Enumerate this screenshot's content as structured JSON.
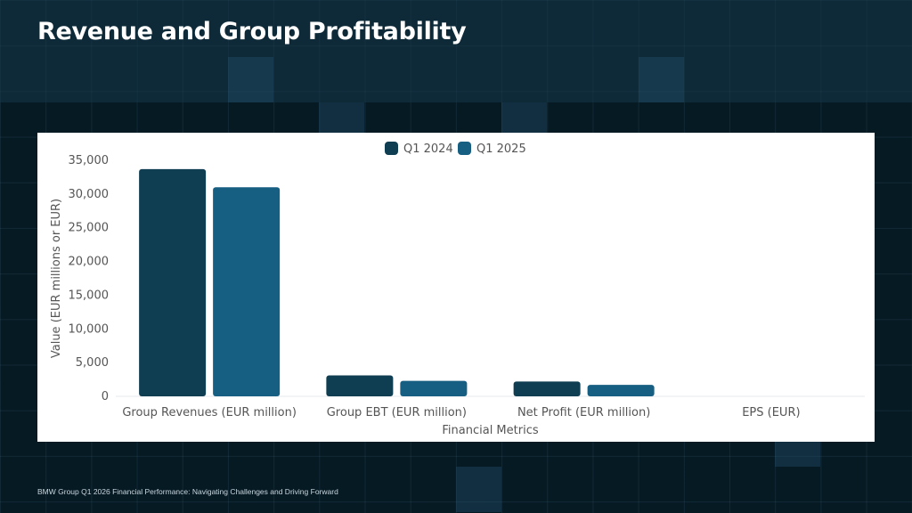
{
  "slide": {
    "title": "Revenue and Group Profitability",
    "footer": "BMW Group Q1 2026 Financial Performance: Navigating Challenges and Driving Forward"
  },
  "colors": {
    "background": "#061a24",
    "q1_2024": "#0f3d52",
    "q1_2025": "#175f82",
    "grid": "#e6e9eb",
    "axis_text": "#555555"
  },
  "chart_data": {
    "type": "bar",
    "xlabel": "Financial Metrics",
    "ylabel": "Value (EUR millions or EUR)",
    "categories": [
      "Group Revenues (EUR million)",
      "Group EBT (EUR million)",
      "Net Profit (EUR million)",
      "EPS (EUR)"
    ],
    "series": [
      {
        "name": "Q1 2024",
        "values": [
          33700,
          3100,
          2200,
          3.5
        ]
      },
      {
        "name": "Q1 2025",
        "values": [
          31000,
          2300,
          1700,
          2.7
        ]
      }
    ],
    "ylim": [
      0,
      35000
    ],
    "yticks": [
      "0",
      "5,000",
      "10,000",
      "15,000",
      "20,000",
      "25,000",
      "30,000",
      "35,000"
    ],
    "ytick_values": [
      0,
      5000,
      10000,
      15000,
      20000,
      25000,
      30000,
      35000
    ],
    "legend_position": "top-center",
    "grid": false
  }
}
